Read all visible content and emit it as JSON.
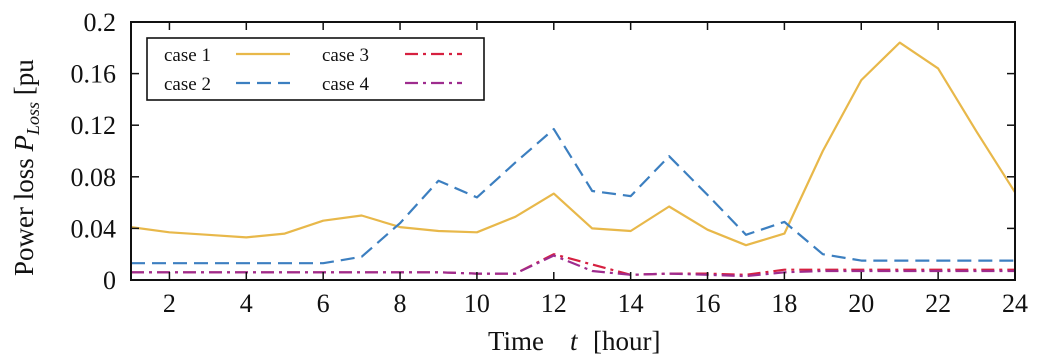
{
  "chart_data": {
    "type": "line",
    "title": "",
    "xlabel_main": "Time",
    "xlabel_var": "t",
    "xlabel_unit": "[hour]",
    "ylabel_main": "Power loss ",
    "ylabel_var": "P",
    "ylabel_sub": "Loss",
    "ylabel_unit": " [pu",
    "xlim": [
      1,
      24
    ],
    "ylim": [
      0,
      0.2
    ],
    "xticks": [
      2,
      4,
      6,
      8,
      10,
      12,
      14,
      16,
      18,
      20,
      22,
      24
    ],
    "yticks": [
      0,
      0.04,
      0.08,
      0.12,
      0.16,
      0.2
    ],
    "ytick_labels": [
      "0",
      "0.04",
      "0.08",
      "0.12",
      "0.16",
      "0.2"
    ],
    "legend_position": "top-left",
    "grid": false,
    "x": [
      1,
      2,
      3,
      4,
      5,
      6,
      7,
      8,
      9,
      10,
      11,
      12,
      13,
      14,
      15,
      16,
      17,
      18,
      19,
      20,
      21,
      22,
      23,
      24
    ],
    "series": [
      {
        "name": "case 1",
        "color": "#E8B84A",
        "dash": "solid",
        "values": [
          0.041,
          0.037,
          0.035,
          0.033,
          0.036,
          0.046,
          0.05,
          0.041,
          0.038,
          0.037,
          0.049,
          0.067,
          0.04,
          0.038,
          0.057,
          0.039,
          0.027,
          0.036,
          0.1,
          0.155,
          0.184,
          0.164,
          0.115,
          0.068
        ]
      },
      {
        "name": "case 2",
        "color": "#3C7FC0",
        "dash": "dashed",
        "values": [
          0.013,
          0.013,
          0.013,
          0.013,
          0.013,
          0.013,
          0.018,
          0.044,
          0.077,
          0.064,
          0.091,
          0.117,
          0.069,
          0.065,
          0.096,
          0.066,
          0.035,
          0.045,
          0.02,
          0.015,
          0.015,
          0.015,
          0.015,
          0.015
        ]
      },
      {
        "name": "case 3",
        "color": "#D62040",
        "dash": "dashdot",
        "values": [
          0.006,
          0.006,
          0.006,
          0.006,
          0.006,
          0.006,
          0.006,
          0.006,
          0.006,
          0.005,
          0.005,
          0.02,
          0.012,
          0.004,
          0.005,
          0.005,
          0.004,
          0.008,
          0.008,
          0.008,
          0.008,
          0.008,
          0.008,
          0.008
        ]
      },
      {
        "name": "case 4",
        "color": "#9E2C8E",
        "dash": "dashdot",
        "values": [
          0.006,
          0.006,
          0.006,
          0.006,
          0.006,
          0.006,
          0.006,
          0.006,
          0.006,
          0.005,
          0.005,
          0.019,
          0.007,
          0.004,
          0.005,
          0.004,
          0.003,
          0.006,
          0.007,
          0.007,
          0.007,
          0.007,
          0.007,
          0.007
        ]
      }
    ]
  }
}
